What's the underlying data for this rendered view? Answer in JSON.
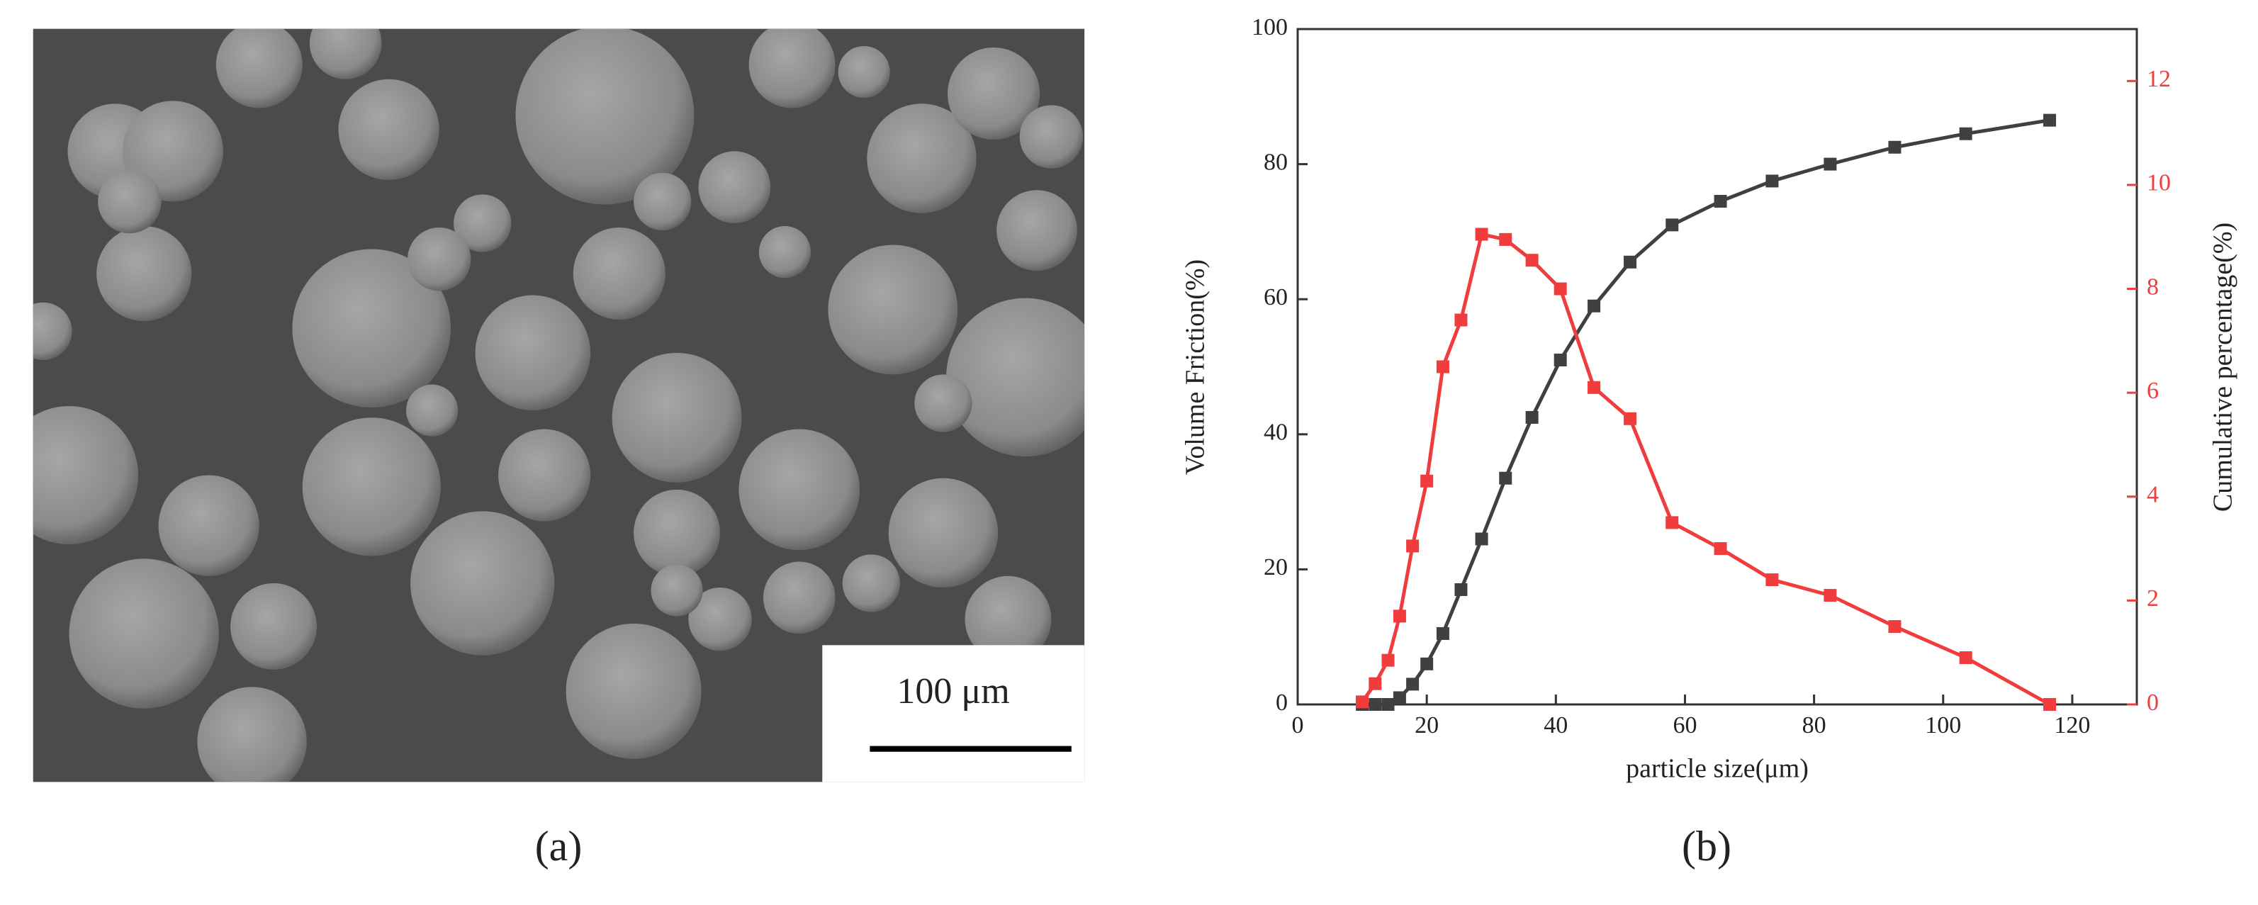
{
  "panels": {
    "a": {
      "label": "(a)",
      "scale_bar": "100 μm"
    },
    "b": {
      "label": "(b)"
    }
  },
  "chart_data": {
    "type": "line",
    "x_label": "particle size(μm)",
    "y_label": "Volume   Friction(%)",
    "y2_label": "Cumulative   percentage(%)",
    "x": [
      10,
      12,
      14,
      15.8,
      17.8,
      20,
      22.5,
      25.3,
      28.5,
      32.2,
      36.3,
      40.7,
      45.9,
      51.5,
      58,
      65.5,
      73.5,
      82.5,
      92.5,
      103.5,
      116.5
    ],
    "series": [
      {
        "color": "#404040",
        "values": [
          0,
          0,
          0,
          1,
          3,
          6,
          10.5,
          17,
          24.5,
          33.5,
          42.5,
          51,
          59,
          65.5,
          71,
          74.5,
          77.5,
          80,
          82.5,
          84.5,
          86.5
        ]
      },
      {
        "color": "#f03c3c",
        "axis": "y2",
        "values": [
          0.05,
          0.4,
          0.85,
          1.7,
          3.05,
          4.3,
          6.5,
          7.4,
          9.05,
          8.95,
          8.55,
          8.0,
          6.1,
          5.5,
          3.5,
          3.0,
          2.4,
          2.1,
          1.5,
          0.9,
          0
        ]
      }
    ],
    "xlim": [
      0,
      130
    ],
    "xticks": [
      0,
      20,
      40,
      60,
      80,
      100,
      120
    ],
    "ylim": [
      0,
      100
    ],
    "yticks": [
      0,
      20,
      40,
      60,
      80,
      100
    ],
    "y2lim": [
      0,
      13
    ],
    "y2ticks": [
      0,
      2,
      4,
      6,
      8,
      10,
      12
    ]
  }
}
